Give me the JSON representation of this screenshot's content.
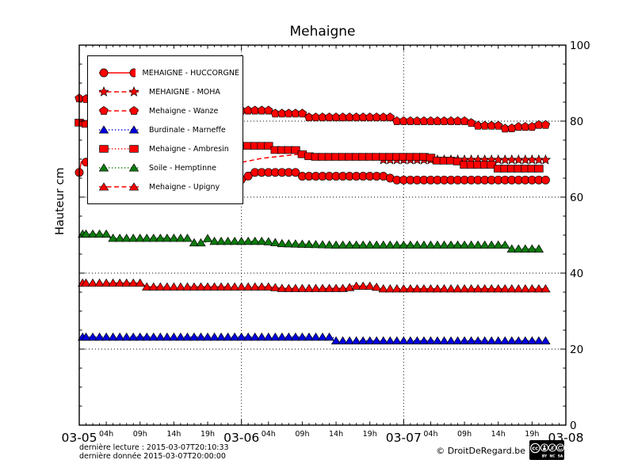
{
  "title": "Mehaigne",
  "ylabel": "Hauteur cm",
  "footer": {
    "last_read": "dernière lecture : 2015-03-07T20:10:33",
    "last_data": "dernière donnée  2015-03-07T20:00:00",
    "copyright": "© DroitDeRegard.be",
    "license_badges": [
      "CC",
      "BY",
      "NC",
      "SA"
    ]
  },
  "chart_data": {
    "type": "line",
    "title": "Mehaigne",
    "ylabel": "Hauteur cm",
    "xlabel": "",
    "ylim": [
      0,
      100
    ],
    "yticks": [
      0,
      20,
      40,
      60,
      80,
      100
    ],
    "y_minor_step": 5,
    "x_range_hours": 72,
    "day_ticks": [
      {
        "label": "03-05",
        "hour": 0
      },
      {
        "label": "03-06",
        "hour": 24
      },
      {
        "label": "03-07",
        "hour": 48
      },
      {
        "label": "03-08",
        "hour": 72
      }
    ],
    "hour_label_offsets": [
      4,
      9,
      14,
      19
    ],
    "hour_label_suffix": "h",
    "grid": "dotted-black",
    "grid_y_values": [
      20,
      40,
      60,
      80
    ],
    "grid_x_hours": [
      24,
      48
    ],
    "legend_position": "upper-left",
    "series": [
      {
        "name": "huccorgne",
        "label": "MEHAIGNE - HUCCORGNE",
        "color": "#ff0000",
        "line": "solid",
        "marker": "circle",
        "points": [
          [
            0,
            66.5
          ],
          [
            0.3,
            69.3
          ],
          [
            6,
            68.5
          ],
          [
            15,
            66.5
          ],
          [
            24.3,
            64.6
          ],
          [
            24.8,
            64.6
          ],
          [
            25.2,
            66.5
          ],
          [
            32.4,
            66.5
          ],
          [
            32.8,
            65.5
          ],
          [
            45.8,
            65.5
          ],
          [
            46.2,
            64.5
          ],
          [
            69,
            64.5
          ]
        ]
      },
      {
        "name": "moha",
        "label": "MEHAIGNE - MOHA",
        "color": "#ff0000",
        "line": "dashed",
        "marker": "star",
        "markers_from": 45,
        "points": [
          [
            23,
            68.8
          ],
          [
            27,
            70.2
          ],
          [
            32,
            71.2
          ],
          [
            36,
            71.2
          ],
          [
            40,
            70.4
          ],
          [
            45,
            69.8
          ],
          [
            69,
            69.8
          ]
        ]
      },
      {
        "name": "wanze",
        "label": "Mehaigne - Wanze",
        "color": "#ff0000",
        "line": "dashed",
        "marker": "pentagon",
        "points": [
          [
            0,
            86
          ],
          [
            10,
            84.3
          ],
          [
            23.5,
            82.8
          ],
          [
            28,
            82.8
          ],
          [
            28.5,
            82
          ],
          [
            33.5,
            82
          ],
          [
            34,
            81
          ],
          [
            46.5,
            81
          ],
          [
            47,
            80
          ],
          [
            57.8,
            80
          ],
          [
            58.3,
            78.8
          ],
          [
            62.3,
            78.8
          ],
          [
            63.5,
            77.5
          ],
          [
            64.3,
            78.5
          ],
          [
            67,
            78.5
          ],
          [
            67.4,
            79
          ],
          [
            69.3,
            79
          ]
        ]
      },
      {
        "name": "marneffe",
        "label": "Burdinale - Marneffe",
        "color": "#0000e0",
        "line": "dotted",
        "marker": "triangle",
        "points": [
          [
            0.5,
            23.2
          ],
          [
            37.5,
            23.2
          ],
          [
            38,
            22.2
          ],
          [
            69,
            22.2
          ]
        ]
      },
      {
        "name": "ambresin",
        "label": "Mehaigne - Ambresin",
        "color": "#ff0000",
        "line": "dotted",
        "marker": "square",
        "points": [
          [
            0,
            79.6
          ],
          [
            10,
            76.5
          ],
          [
            23.7,
            73.5
          ],
          [
            28.4,
            73.5
          ],
          [
            28.9,
            72.4
          ],
          [
            32.6,
            72.4
          ],
          [
            33.1,
            71
          ],
          [
            34.6,
            70.6
          ],
          [
            51.9,
            70.6
          ],
          [
            52.4,
            69.6
          ],
          [
            55.9,
            69.6
          ],
          [
            56.4,
            68.5
          ],
          [
            61.4,
            68.5
          ],
          [
            61.9,
            67.5
          ],
          [
            68.3,
            67.5
          ]
        ]
      },
      {
        "name": "hemptinne",
        "label": "Soile - Hemptinne",
        "color": "#0e7b0e",
        "line": "dotted",
        "marker": "triangle",
        "points": [
          [
            0.5,
            50.3
          ],
          [
            4.1,
            50.3
          ],
          [
            4.6,
            49.2
          ],
          [
            16.1,
            49.2
          ],
          [
            16.6,
            48
          ],
          [
            18.6,
            48
          ],
          [
            19.1,
            49.4
          ],
          [
            19.6,
            48.4
          ],
          [
            27.6,
            48.4
          ],
          [
            30,
            47.8
          ],
          [
            38,
            47.4
          ],
          [
            63.3,
            47.4
          ],
          [
            63.8,
            46.4
          ],
          [
            68.3,
            46.4
          ]
        ]
      },
      {
        "name": "upigny",
        "label": "Mehaigne - Upigny",
        "color": "#ff0000",
        "line": "dashed",
        "marker": "triangle",
        "points": [
          [
            0.5,
            37.4
          ],
          [
            9.3,
            37.4
          ],
          [
            9.8,
            36.4
          ],
          [
            28,
            36.4
          ],
          [
            30,
            36
          ],
          [
            39.8,
            36
          ],
          [
            40.3,
            36.6
          ],
          [
            43.8,
            36.6
          ],
          [
            44.3,
            35.9
          ],
          [
            69,
            35.9
          ]
        ]
      }
    ]
  }
}
